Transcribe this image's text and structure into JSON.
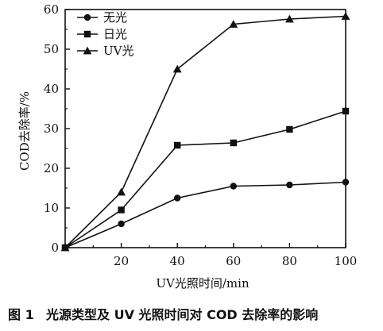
{
  "chart_data": {
    "type": "line",
    "x": [
      0,
      20,
      40,
      60,
      80,
      100
    ],
    "series": [
      {
        "name": "无光",
        "marker": "circle",
        "values": [
          0,
          6,
          12.5,
          15.5,
          15.8,
          16.5
        ]
      },
      {
        "name": "日光",
        "marker": "square",
        "values": [
          0,
          9.5,
          25.8,
          26.4,
          29.8,
          34.4
        ]
      },
      {
        "name": "UV光",
        "marker": "triangle",
        "values": [
          0,
          14,
          45,
          56.3,
          57.6,
          58.3
        ]
      }
    ],
    "xlabel": "UV光照时间/min",
    "ylabel": "COD去除率/%",
    "xlim": [
      0,
      100
    ],
    "ylim": [
      0,
      60
    ],
    "xticks": [
      "20",
      "40",
      "60",
      "80",
      "100"
    ],
    "yticks": [
      "0",
      "10",
      "20",
      "30",
      "40",
      "50",
      "60"
    ],
    "legend_position": "top-left",
    "grid": false,
    "line_color": "#111111"
  },
  "caption": {
    "number": "图 1",
    "text": "光源类型及 UV 光照时间对 COD 去除率的影响"
  }
}
